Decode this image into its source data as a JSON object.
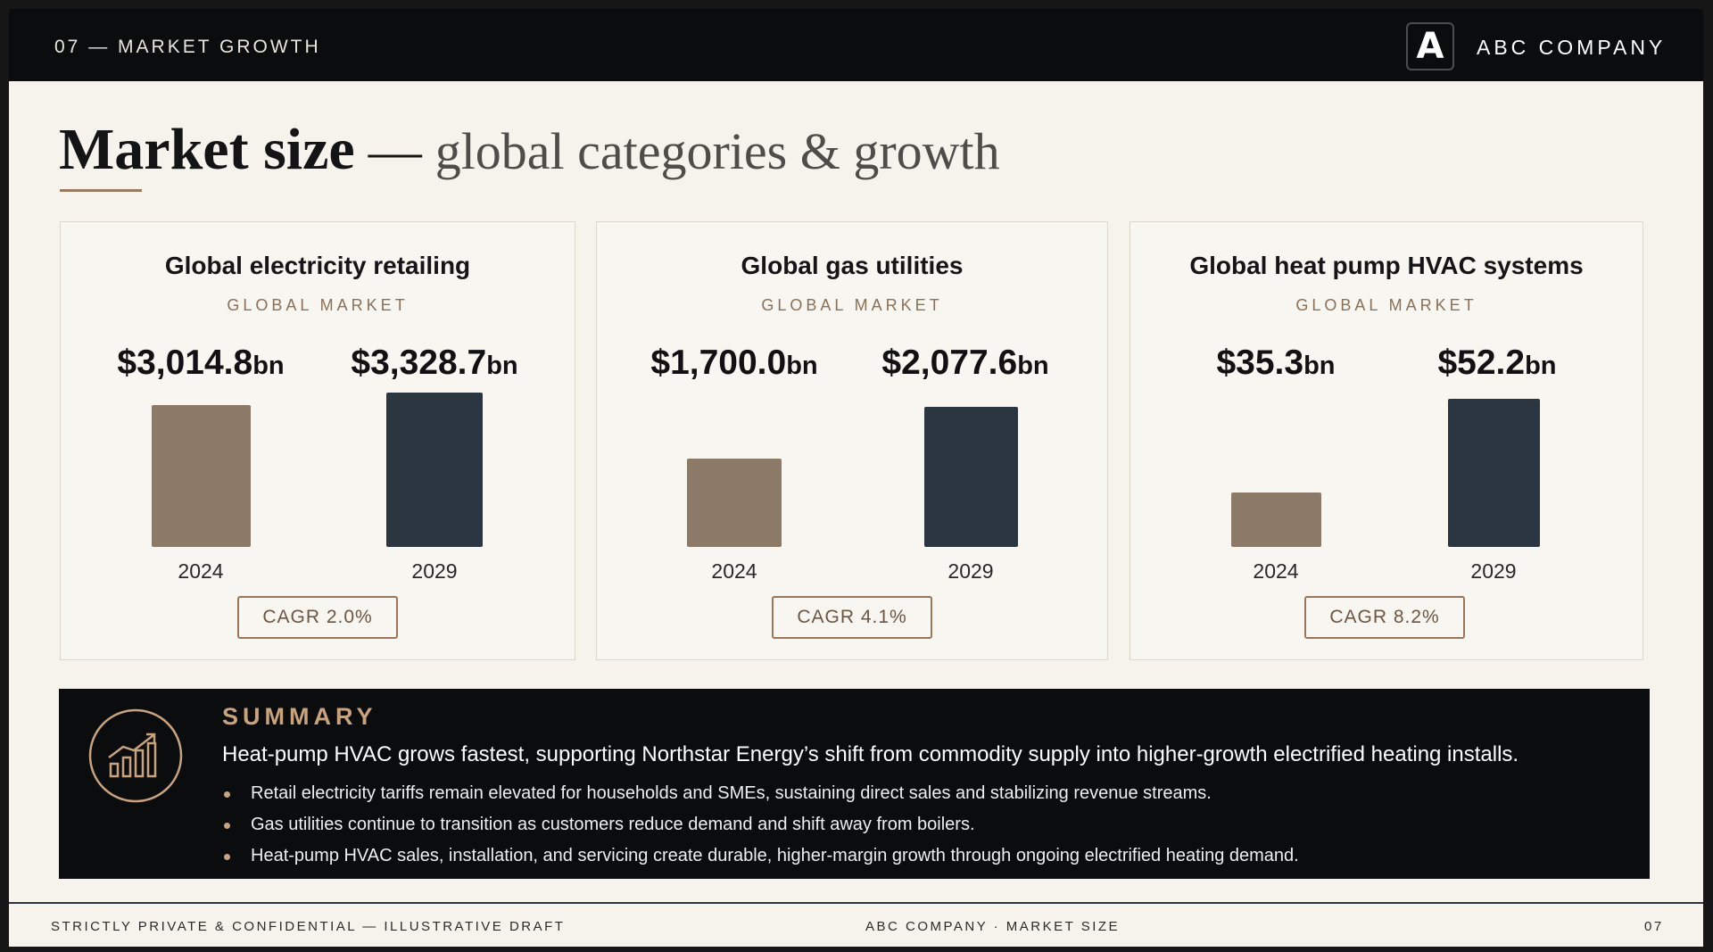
{
  "header": {
    "section": "07 — MARKET GROWTH",
    "logo_letter": "A",
    "company": "ABC COMPANY"
  },
  "title": {
    "strong": "Market size",
    "separator": " — ",
    "light": "global categories & growth"
  },
  "colors": {
    "bar_2024": "#8c7a68",
    "bar_2029": "#2c3641",
    "accent": "#c9a27e",
    "dark_background": "#0b0c0e"
  },
  "chart_data": [
    {
      "type": "bar",
      "title": "Global electricity retailing",
      "subtitle": "GLOBAL MARKET",
      "categories": [
        "2024",
        "2029"
      ],
      "values": [
        3014.8,
        3328.7
      ],
      "value_labels": [
        {
          "num": "$3,014.8",
          "unit": "bn"
        },
        {
          "num": "$3,328.7",
          "unit": "bn"
        }
      ],
      "unit": "bn",
      "cagr": "CAGR 2.0%"
    },
    {
      "type": "bar",
      "title": "Global gas utilities",
      "subtitle": "GLOBAL MARKET",
      "categories": [
        "2024",
        "2029"
      ],
      "values": [
        1700.0,
        2077.6
      ],
      "value_labels": [
        {
          "num": "$1,700.0",
          "unit": "bn"
        },
        {
          "num": "$2,077.6",
          "unit": "bn"
        }
      ],
      "unit": "bn",
      "cagr": "CAGR 4.1%"
    },
    {
      "type": "bar",
      "title": "Global heat pump HVAC systems",
      "subtitle": "GLOBAL MARKET",
      "categories": [
        "2024",
        "2029"
      ],
      "values": [
        35.3,
        52.2
      ],
      "value_labels": [
        {
          "num": "$35.3",
          "unit": "bn"
        },
        {
          "num": "$52.2",
          "unit": "bn"
        }
      ],
      "unit": "bn",
      "cagr": "CAGR 8.2%"
    }
  ],
  "summary": {
    "icon": "growth-chart-icon",
    "heading": "SUMMARY",
    "lead": "Heat-pump HVAC grows fastest, supporting Northstar Energy’s shift from commodity supply into higher-growth electrified heating installs.",
    "bullets": [
      "Retail electricity tariffs remain elevated for households and SMEs, sustaining direct sales and stabilizing revenue streams.",
      "Gas utilities continue to transition as customers reduce demand and shift away from boilers.",
      "Heat-pump HVAC sales, installation, and servicing create durable, higher-margin growth through ongoing electrified heating demand."
    ]
  },
  "footer": {
    "left": "STRICTLY PRIVATE & CONFIDENTIAL — ILLUSTRATIVE DRAFT",
    "center": "ABC COMPANY · MARKET SIZE",
    "page": "07"
  }
}
